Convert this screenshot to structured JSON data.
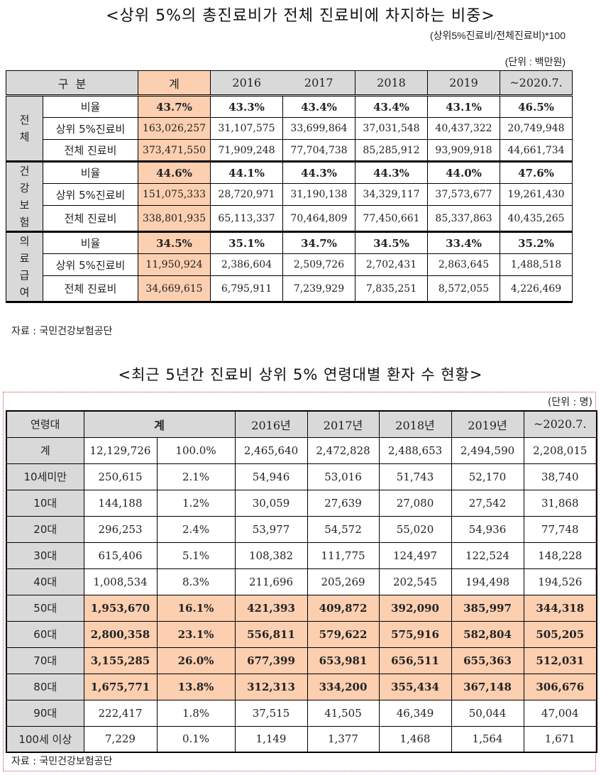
{
  "table1": {
    "title": "<상위 5%의 총진료비가 전체 진료비에 차지하는 비중>",
    "formula": "(상위5%진료비/전체진료비)*100",
    "unit": "(단위 : 백만원)",
    "header": {
      "category": "구  분",
      "total": "계",
      "years": [
        "2016",
        "2017",
        "2018",
        "2019",
        "~2020.7."
      ]
    },
    "groups": [
      {
        "label": "전\n체",
        "label_chars": [
          "전",
          "체"
        ],
        "rows": [
          {
            "label": "비율",
            "total": "43.7%",
            "values": [
              "43.3%",
              "43.4%",
              "43.4%",
              "43.1%",
              "46.5%"
            ]
          },
          {
            "label": "상위 5%진료비",
            "total": "163,026,257",
            "values": [
              "31,107,575",
              "33,699,864",
              "37,031,548",
              "40,437,322",
              "20,749,948"
            ]
          },
          {
            "label": "전체 진료비",
            "total": "373,471,550",
            "values": [
              "71,909,248",
              "77,704,738",
              "85,285,912",
              "93,909,918",
              "44,661,734"
            ]
          }
        ]
      },
      {
        "label_chars": [
          "건",
          "강",
          "보",
          "험"
        ],
        "rows": [
          {
            "label": "비율",
            "total": "44.6%",
            "values": [
              "44.1%",
              "44.3%",
              "44.3%",
              "44.0%",
              "47.6%"
            ]
          },
          {
            "label": "상위 5%진료비",
            "total": "151,075,333",
            "values": [
              "28,720,971",
              "31,190,138",
              "34,329,117",
              "37,573,677",
              "19,261,430"
            ]
          },
          {
            "label": "전체 진료비",
            "total": "338,801,935",
            "values": [
              "65,113,337",
              "70,464,809",
              "77,450,661",
              "85,337,863",
              "40,435,265"
            ]
          }
        ]
      },
      {
        "label_chars": [
          "의",
          "료",
          "급",
          "여"
        ],
        "rows": [
          {
            "label": "비율",
            "total": "34.5%",
            "values": [
              "35.1%",
              "34.7%",
              "34.5%",
              "33.4%",
              "35.2%"
            ]
          },
          {
            "label": "상위 5%진료비",
            "total": "11,950,924",
            "values": [
              "2,386,604",
              "2,509,726",
              "2,702,431",
              "2,863,645",
              "1,488,518"
            ]
          },
          {
            "label": "전체 진료비",
            "total": "34,669,615",
            "values": [
              "6,795,911",
              "7,239,929",
              "7,835,251",
              "8,572,055",
              "4,226,469"
            ]
          }
        ]
      }
    ],
    "source": "자료 : 국민건강보험공단"
  },
  "table2": {
    "title": "<최근 5년간 진료비 상위 5% 연령대별 환자 수 현황>",
    "unit": "(단위 : 명)",
    "header": {
      "age": "연령대",
      "total": "계",
      "years": [
        "2016년",
        "2017년",
        "2018년",
        "2019년",
        "~2020.7."
      ]
    },
    "rows": [
      {
        "label": "계",
        "total": "12,129,726",
        "pct": "100.0%",
        "values": [
          "2,465,640",
          "2,472,828",
          "2,488,653",
          "2,494,590",
          "2,208,015"
        ],
        "highlight": false
      },
      {
        "label": "10세미만",
        "total": "250,615",
        "pct": "2.1%",
        "values": [
          "54,946",
          "53,016",
          "51,743",
          "52,170",
          "38,740"
        ],
        "highlight": false
      },
      {
        "label": "10대",
        "total": "144,188",
        "pct": "1.2%",
        "values": [
          "30,059",
          "27,639",
          "27,080",
          "27,542",
          "31,868"
        ],
        "highlight": false
      },
      {
        "label": "20대",
        "total": "296,253",
        "pct": "2.4%",
        "values": [
          "53,977",
          "54,572",
          "55,020",
          "54,936",
          "77,748"
        ],
        "highlight": false
      },
      {
        "label": "30대",
        "total": "615,406",
        "pct": "5.1%",
        "values": [
          "108,382",
          "111,775",
          "124,497",
          "122,524",
          "148,228"
        ],
        "highlight": false
      },
      {
        "label": "40대",
        "total": "1,008,534",
        "pct": "8.3%",
        "values": [
          "211,696",
          "205,269",
          "202,545",
          "194,498",
          "194,526"
        ],
        "highlight": false
      },
      {
        "label": "50대",
        "total": "1,953,670",
        "pct": "16.1%",
        "values": [
          "421,393",
          "409,872",
          "392,090",
          "385,997",
          "344,318"
        ],
        "highlight": true
      },
      {
        "label": "60대",
        "total": "2,800,358",
        "pct": "23.1%",
        "values": [
          "556,811",
          "579,622",
          "575,916",
          "582,804",
          "505,205"
        ],
        "highlight": true
      },
      {
        "label": "70대",
        "total": "3,155,285",
        "pct": "26.0%",
        "values": [
          "677,399",
          "653,981",
          "656,511",
          "655,363",
          "512,031"
        ],
        "highlight": true
      },
      {
        "label": "80대",
        "total": "1,675,771",
        "pct": "13.8%",
        "values": [
          "312,313",
          "334,200",
          "355,434",
          "367,148",
          "306,676"
        ],
        "highlight": true
      },
      {
        "label": "90대",
        "total": "222,417",
        "pct": "1.8%",
        "values": [
          "37,515",
          "41,505",
          "46,349",
          "50,044",
          "47,004"
        ],
        "highlight": false
      },
      {
        "label": "100세 이상",
        "total": "7,229",
        "pct": "0.1%",
        "values": [
          "1,149",
          "1,377",
          "1,468",
          "1,564",
          "1,671"
        ],
        "highlight": false
      }
    ],
    "source": "자료 : 국민건강보험공단"
  },
  "colors": {
    "header_gray": "#d9d9d9",
    "highlight_peach": "#fccfb0",
    "border": "#000000"
  }
}
